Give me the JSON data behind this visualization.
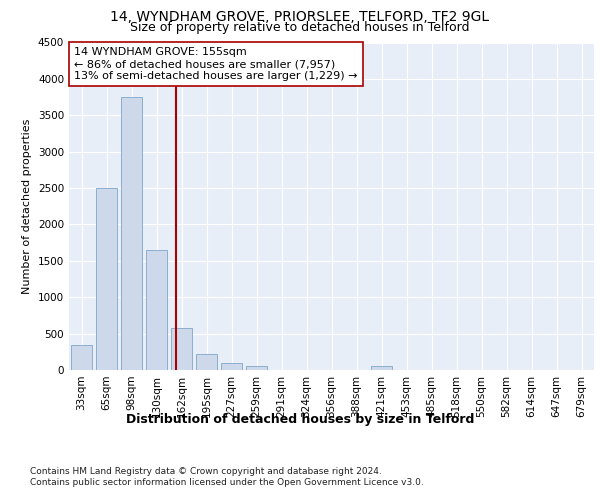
{
  "title1": "14, WYNDHAM GROVE, PRIORSLEE, TELFORD, TF2 9GL",
  "title2": "Size of property relative to detached houses in Telford",
  "xlabel": "Distribution of detached houses by size in Telford",
  "ylabel": "Number of detached properties",
  "categories": [
    "33sqm",
    "65sqm",
    "98sqm",
    "130sqm",
    "162sqm",
    "195sqm",
    "227sqm",
    "259sqm",
    "291sqm",
    "324sqm",
    "356sqm",
    "388sqm",
    "421sqm",
    "453sqm",
    "485sqm",
    "518sqm",
    "550sqm",
    "582sqm",
    "614sqm",
    "647sqm",
    "679sqm"
  ],
  "values": [
    350,
    2500,
    3750,
    1650,
    575,
    225,
    100,
    60,
    0,
    0,
    0,
    0,
    55,
    0,
    0,
    0,
    0,
    0,
    0,
    0,
    0
  ],
  "bar_color": "#cdd9ea",
  "bar_edge_color": "#8baecf",
  "vline_color": "#aa0000",
  "annotation_text": "14 WYNDHAM GROVE: 155sqm\n← 86% of detached houses are smaller (7,957)\n13% of semi-detached houses are larger (1,229) →",
  "annotation_box_color": "#ffffff",
  "annotation_box_edge": "#aa0000",
  "ylim": [
    0,
    4500
  ],
  "yticks": [
    0,
    500,
    1000,
    1500,
    2000,
    2500,
    3000,
    3500,
    4000,
    4500
  ],
  "background_color": "#e8eef8",
  "footer": "Contains HM Land Registry data © Crown copyright and database right 2024.\nContains public sector information licensed under the Open Government Licence v3.0.",
  "title1_fontsize": 10,
  "title2_fontsize": 9,
  "xlabel_fontsize": 9,
  "ylabel_fontsize": 8,
  "tick_fontsize": 7.5,
  "annotation_fontsize": 8,
  "footer_fontsize": 6.5
}
